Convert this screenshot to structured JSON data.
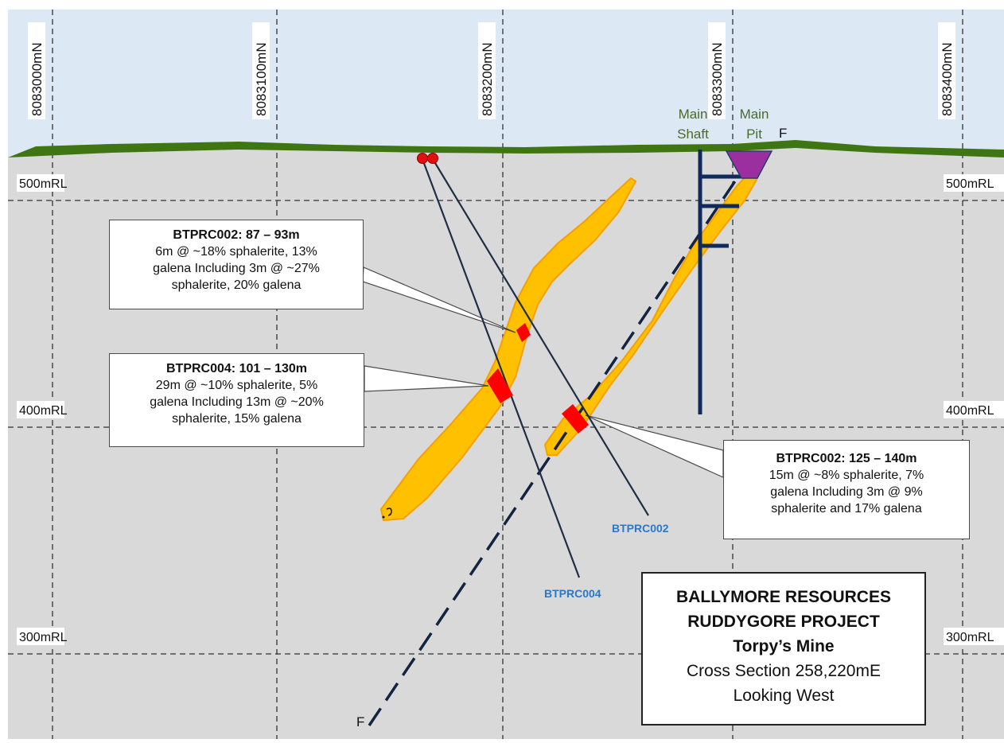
{
  "northings": [
    "8083000mN",
    "8083100mN",
    "8083200mN",
    "8083300mN",
    "8083400mN"
  ],
  "elevations": {
    "left": [
      "500mRL",
      "400mRL",
      "300mRL"
    ],
    "right": [
      "500mRL",
      "400mRL",
      "300mRL"
    ]
  },
  "features": {
    "main_shaft": [
      "Main",
      "Shaft"
    ],
    "main_pit": [
      "Main",
      "Pit"
    ],
    "fault_label_top": "F",
    "fault_label_bottom": "F"
  },
  "drillholes": {
    "hole_a": "BTPRC002",
    "hole_b": "BTPRC004"
  },
  "callouts": {
    "c1": {
      "header": "BTPRC002: 87 – 93m",
      "lines": [
        "6m @ ~18% sphalerite, 13%",
        "galena Including 3m @ ~27%",
        "sphalerite, 20% galena"
      ]
    },
    "c2": {
      "header": "BTPRC004: 101 – 130m",
      "lines": [
        "29m @ ~10% sphalerite, 5%",
        "galena Including 13m @ ~20%",
        "sphalerite, 15% galena"
      ]
    },
    "c3": {
      "header": "BTPRC002: 125 – 140m",
      "lines": [
        "15m @ ~8% sphalerite, 7%",
        "galena Including 3m @ 9%",
        "sphalerite and 17% galena"
      ]
    }
  },
  "title_box": {
    "line1": "BALLYMORE RESOURCES",
    "line2": "RUDDYGORE PROJECT",
    "line3": "Torpy’s Mine",
    "line4": "Cross Section 258,220mE",
    "line5": "Looking West"
  },
  "colors": {
    "sky": "#dce9f5",
    "ground": "#d9d9d9",
    "surface": "#3f7613",
    "orebody": "#ffc000",
    "orebody_edge": "#f5a000",
    "intercept": "#ff0000",
    "shaft": "#102a5c",
    "pit": "#9b2fa0",
    "hole_label": "#2a78c8",
    "feature_label": "#4a6a2a"
  }
}
